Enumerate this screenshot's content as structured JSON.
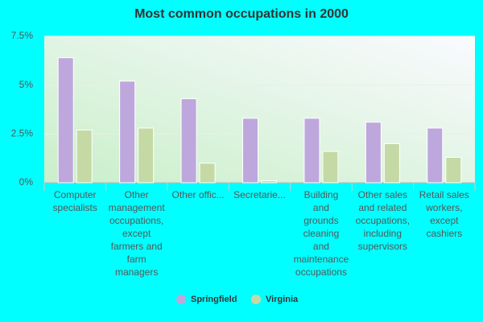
{
  "chart_data": {
    "type": "bar",
    "title": "Most common occupations in 2000",
    "categories": [
      "Computer\nspecialists",
      "Other\nmanagement\noccupations,\nexcept\nfarmers and\nfarm\nmanagers",
      "Other offic...",
      "Secretarie...",
      "Building\nand\ngrounds\ncleaning\nand\nmaintenance\noccupations",
      "Other sales\nand related\noccupations,\nincluding\nsupervisors",
      "Retail sales\nworkers,\nexcept\ncashiers"
    ],
    "series": [
      {
        "name": "Springfield",
        "color": "#bda7dc",
        "values": [
          6.4,
          5.2,
          4.3,
          3.3,
          3.3,
          3.1,
          2.8
        ]
      },
      {
        "name": "Virginia",
        "color": "#c5d9a5",
        "values": [
          2.7,
          2.8,
          1.0,
          0.1,
          1.6,
          2.0,
          1.3
        ]
      }
    ],
    "ylim": [
      0,
      7.5
    ],
    "yticks": [
      {
        "value": 0,
        "label": "0%"
      },
      {
        "value": 2.5,
        "label": "2.5%"
      },
      {
        "value": 5,
        "label": "5%"
      },
      {
        "value": 7.5,
        "label": "7.5%"
      }
    ],
    "grid": true
  }
}
